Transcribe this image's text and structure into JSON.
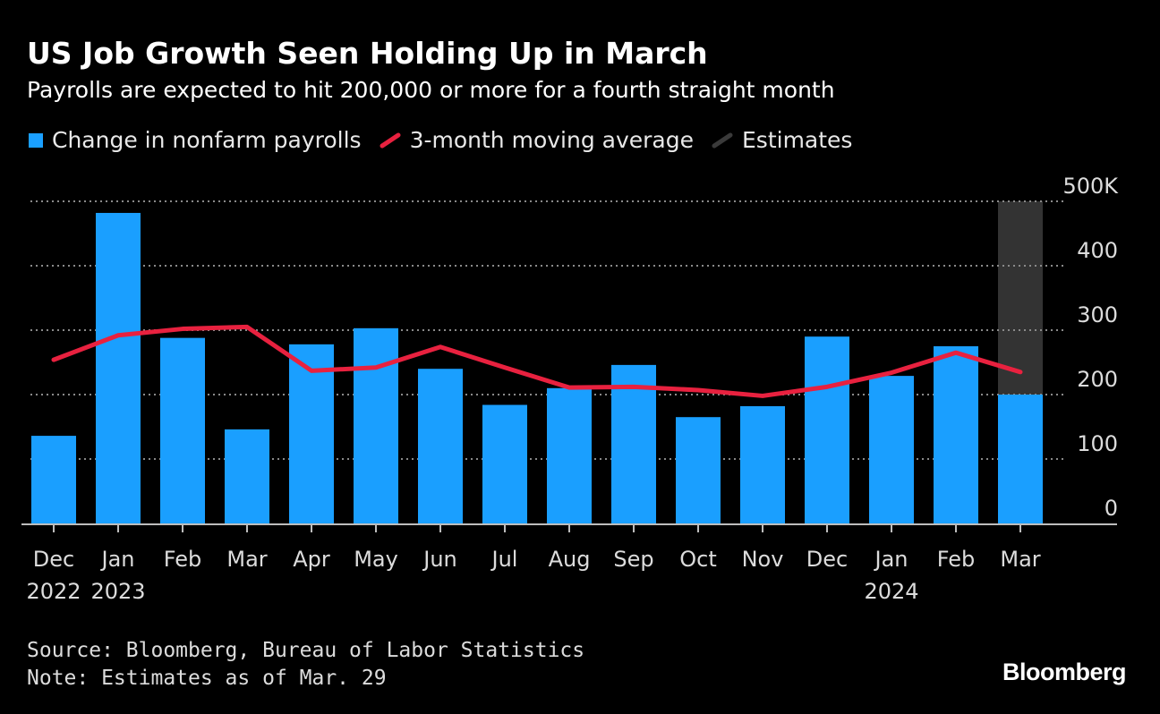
{
  "chart_data": {
    "type": "bar",
    "title": "US Job Growth Seen Holding Up in March",
    "subtitle": "Payrolls are expected to hit 200,000 or more for a fourth straight month",
    "legend": {
      "bars": "Change in nonfarm payrolls",
      "line": "3-month moving average",
      "estimates": "Estimates"
    },
    "categories": [
      "Dec",
      "Jan",
      "Feb",
      "Mar",
      "Apr",
      "May",
      "Jun",
      "Jul",
      "Aug",
      "Sep",
      "Oct",
      "Nov",
      "Dec",
      "Jan",
      "Feb",
      "Mar"
    ],
    "year_labels": [
      "2022",
      "2023",
      "",
      "",
      "",
      "",
      "",
      "",
      "",
      "",
      "",
      "",
      "",
      "2024",
      "",
      ""
    ],
    "series": [
      {
        "name": "Change in nonfarm payrolls",
        "type": "bar",
        "color": "#1a9fff",
        "values": [
          136,
          482,
          288,
          146,
          278,
          303,
          240,
          184,
          210,
          246,
          165,
          182,
          290,
          229,
          275,
          200
        ]
      },
      {
        "name": "3-month moving average",
        "type": "line",
        "color": "#e8213f",
        "values": [
          254,
          292,
          302,
          305,
          237,
          242,
          274,
          242,
          211,
          212,
          207,
          198,
          212,
          234,
          265,
          235
        ]
      }
    ],
    "estimate_index": 15,
    "estimate_color": "#333333",
    "y_ticks": [
      {
        "value": 0,
        "label": "0"
      },
      {
        "value": 100,
        "label": "100"
      },
      {
        "value": 200,
        "label": "200"
      },
      {
        "value": 300,
        "label": "300"
      },
      {
        "value": 400,
        "label": "400"
      },
      {
        "value": 500,
        "label": "500K"
      }
    ],
    "ylim": [
      0,
      500
    ],
    "grid": true
  },
  "footer": {
    "source": "Source: Bloomberg, Bureau of Labor Statistics",
    "note": "Note: Estimates as of Mar. 29"
  },
  "brand": "Bloomberg"
}
